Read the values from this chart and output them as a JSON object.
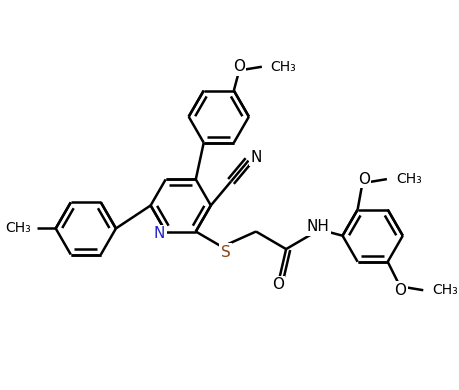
{
  "background_color": "#ffffff",
  "line_color": "#000000",
  "line_width": 1.8,
  "font_size": 10,
  "figsize": [
    4.59,
    3.9
  ],
  "dpi": 100,
  "xlim": [
    0,
    10
  ],
  "ylim": [
    0,
    8.5
  ]
}
